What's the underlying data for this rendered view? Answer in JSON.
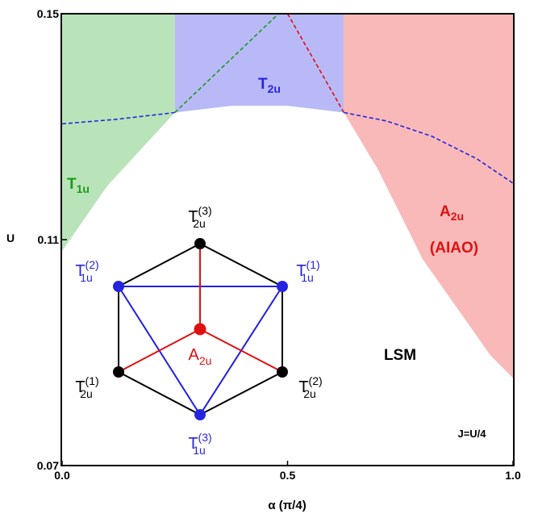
{
  "chart_data": {
    "type": "phase-diagram",
    "xlabel": "α (π/4)",
    "ylabel": "U",
    "xlim": [
      0.0,
      1.0
    ],
    "ylim": [
      0.07,
      0.15
    ],
    "x_ticks": [
      "0.0",
      "0.5",
      "1.0"
    ],
    "y_ticks": [
      "0.07",
      "0.11",
      "0.15"
    ],
    "annotation": "J=U/4",
    "colors": {
      "green": "#b9e4b9",
      "blue": "#b9b9f7",
      "red": "#f9b9b9",
      "green_text": "#1a9a1a",
      "blue_text": "#2525e0",
      "red_text": "#e01010"
    },
    "regions": [
      {
        "name": "T1u",
        "label_main": "T",
        "label_sub": "1u",
        "color": "green",
        "boundary": [
          [
            0.0,
            0.108
          ],
          [
            0.0,
            0.15
          ],
          [
            0.25,
            0.15
          ],
          [
            0.25,
            0.1325
          ],
          [
            0.1,
            0.1195
          ],
          [
            0.0,
            0.108
          ]
        ]
      },
      {
        "name": "T2u",
        "label_main": "T",
        "label_sub": "2u",
        "color": "blue",
        "boundary": [
          [
            0.25,
            0.1325
          ],
          [
            0.25,
            0.15
          ],
          [
            0.625,
            0.15
          ],
          [
            0.625,
            0.1325
          ],
          [
            0.5,
            0.1337
          ],
          [
            0.375,
            0.1337
          ],
          [
            0.25,
            0.1325
          ]
        ]
      },
      {
        "name": "A2u",
        "label_main": "A",
        "label_sub": "2u",
        "label_extra": "(AIAO)",
        "color": "red",
        "boundary": [
          [
            0.625,
            0.1325
          ],
          [
            0.625,
            0.15
          ],
          [
            1.0,
            0.15
          ],
          [
            1.0,
            0.0855
          ],
          [
            0.95,
            0.0895
          ],
          [
            0.8,
            0.1065
          ],
          [
            0.7,
            0.1225
          ],
          [
            0.625,
            0.1325
          ]
        ]
      },
      {
        "name": "LSM",
        "label_main": "LSM"
      }
    ],
    "dashed_lines": [
      {
        "color": "blue_text",
        "points": [
          [
            0.0,
            0.1305
          ],
          [
            0.12,
            0.1313
          ],
          [
            0.25,
            0.1325
          ]
        ]
      },
      {
        "color": "green_text",
        "points": [
          [
            0.25,
            0.1325
          ],
          [
            0.48,
            0.15
          ]
        ]
      },
      {
        "color": "red_text",
        "points": [
          [
            0.5,
            0.15
          ],
          [
            0.625,
            0.1325
          ]
        ]
      },
      {
        "color": "blue_text",
        "points": [
          [
            0.625,
            0.1325
          ],
          [
            0.72,
            0.131
          ],
          [
            0.82,
            0.1283
          ],
          [
            0.92,
            0.1243
          ],
          [
            1.0,
            0.12
          ]
        ]
      }
    ],
    "inset": {
      "nodes": [
        {
          "name": "T2u(3)",
          "main": "T",
          "sub": "2u",
          "sup": "(3)",
          "color": "#000000"
        },
        {
          "name": "T1u(1)",
          "main": "T",
          "sub": "1u",
          "sup": "(1)",
          "color": "#2525e0"
        },
        {
          "name": "T2u(2)",
          "main": "T",
          "sub": "2u",
          "sup": "(2)",
          "color": "#000000"
        },
        {
          "name": "T1u(3)",
          "main": "T",
          "sub": "1u",
          "sup": "(3)",
          "color": "#2525e0"
        },
        {
          "name": "T2u(1)",
          "main": "T",
          "sub": "2u",
          "sup": "(1)",
          "color": "#000000"
        },
        {
          "name": "T1u(2)",
          "main": "T",
          "sub": "1u",
          "sup": "(2)",
          "color": "#2525e0"
        },
        {
          "name": "A2u",
          "main": "A",
          "sub": "2u",
          "sup": "",
          "color": "#e01010"
        }
      ]
    }
  }
}
